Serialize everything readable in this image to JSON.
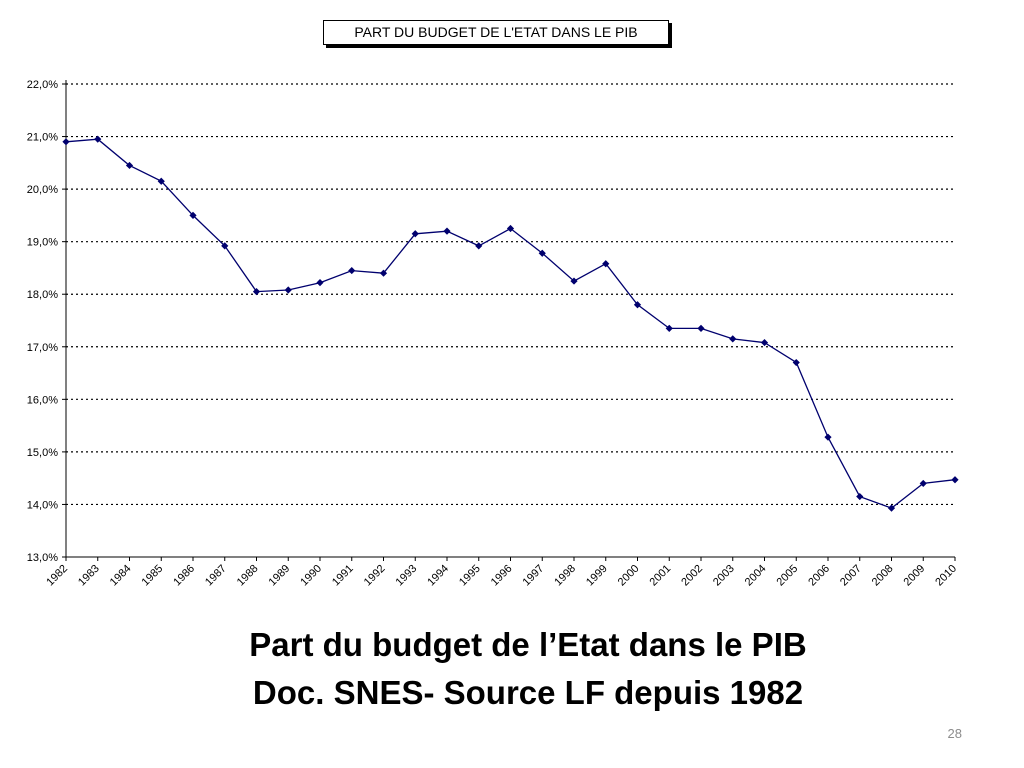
{
  "chart_data": {
    "type": "line",
    "title": "PART DU BUDGET DE L'ETAT DANS LE PIB",
    "xlabel": "",
    "ylabel": "",
    "ylim": [
      13.0,
      22.0
    ],
    "y_ticks": [
      "22,0%",
      "21,0%",
      "20,0%",
      "19,0%",
      "18,0%",
      "17,0%",
      "16,0%",
      "15,0%",
      "14,0%",
      "13,0%"
    ],
    "y_tick_values": [
      22,
      21,
      20,
      19,
      18,
      17,
      16,
      15,
      14,
      13
    ],
    "categories": [
      "1982",
      "1983",
      "1984",
      "1985",
      "1986",
      "1987",
      "1988",
      "1989",
      "1990",
      "1991",
      "1992",
      "1993",
      "1994",
      "1995",
      "1996",
      "1997",
      "1998",
      "1999",
      "2000",
      "2001",
      "2002",
      "2003",
      "2004",
      "2005",
      "2006",
      "2007",
      "2008",
      "2009",
      "2010"
    ],
    "series": [
      {
        "values": [
          20.9,
          20.95,
          20.45,
          20.15,
          19.5,
          18.92,
          18.05,
          18.08,
          18.22,
          18.45,
          18.4,
          19.15,
          19.2,
          18.92,
          19.25,
          18.78,
          18.25,
          18.58,
          17.8,
          17.35,
          17.35,
          17.15,
          17.08,
          16.7,
          15.28,
          14.15,
          13.93,
          14.4,
          14.47
        ],
        "color": "#00006e"
      }
    ],
    "grid": true,
    "grid_style": "dotted",
    "legend": "none"
  },
  "captions": {
    "line1": "Part du budget de l’Etat dans le PIB",
    "line2": "Doc. SNES- Source LF depuis 1982"
  },
  "page_number": "28"
}
